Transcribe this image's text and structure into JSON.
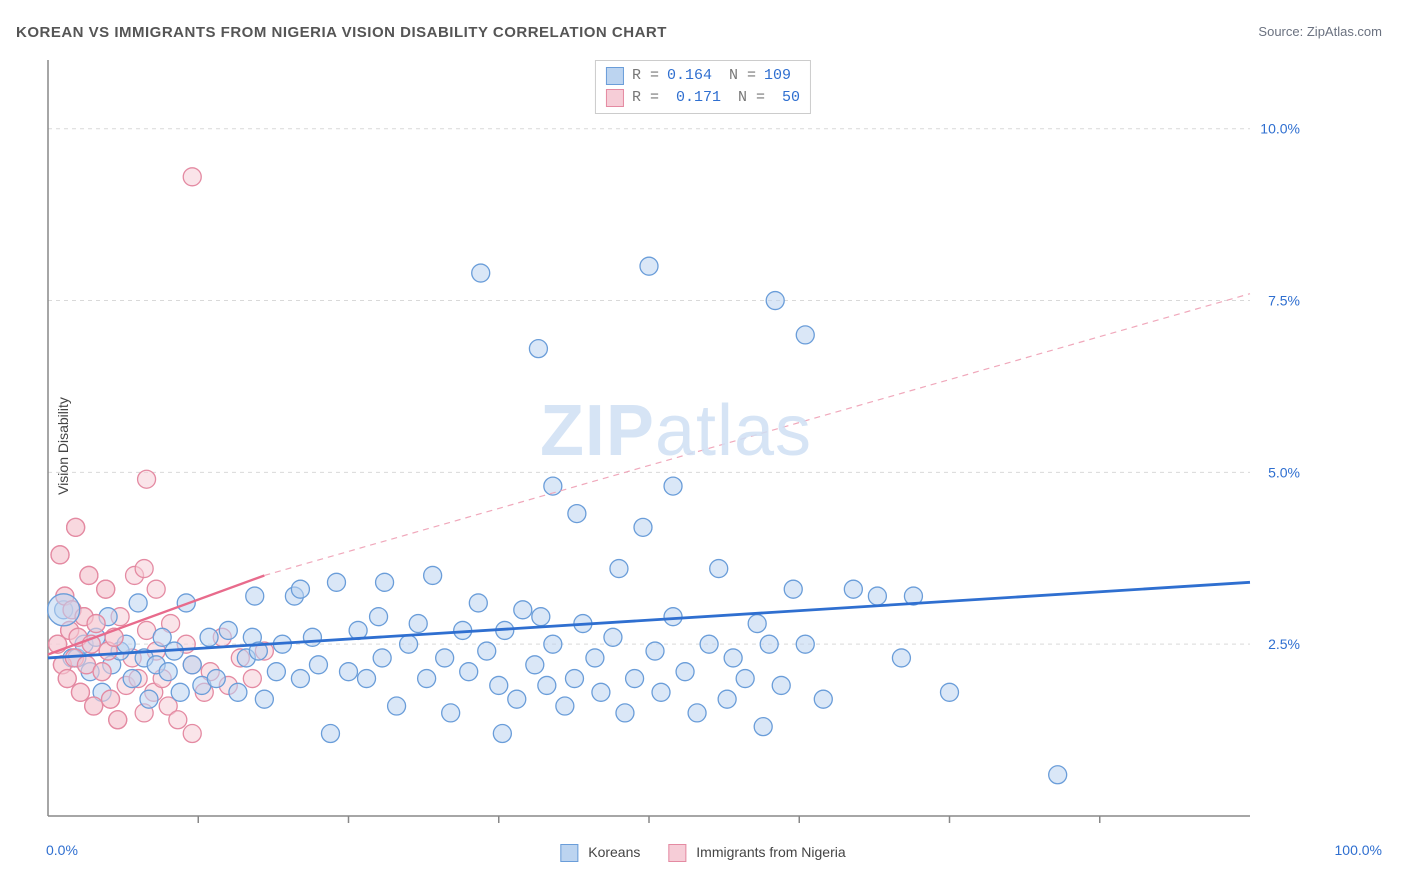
{
  "title": "KOREAN VS IMMIGRANTS FROM NIGERIA VISION DISABILITY CORRELATION CHART",
  "source_label": "Source:",
  "source_value": "ZipAtlas.com",
  "y_axis_label": "Vision Disability",
  "watermark_bold": "ZIP",
  "watermark_rest": "atlas",
  "chart": {
    "type": "scatter",
    "xlim": [
      0,
      100
    ],
    "ylim": [
      0,
      11
    ],
    "x_tick_label_min": "0.0%",
    "x_tick_label_max": "100.0%",
    "x_ticks_at": [
      12.5,
      25,
      37.5,
      50,
      62.5,
      75,
      87.5
    ],
    "y_ticks": [
      {
        "v": 2.5,
        "label": "2.5%"
      },
      {
        "v": 5.0,
        "label": "5.0%"
      },
      {
        "v": 7.5,
        "label": "7.5%"
      },
      {
        "v": 10.0,
        "label": "10.0%"
      }
    ],
    "y_tick_color": "#2f6fd0",
    "grid_color": "#d9d9d9",
    "axis_color": "#888888",
    "background_color": "#ffffff",
    "marker_radius": 9,
    "marker_stroke_width": 1.3,
    "series": [
      {
        "name": "Koreans",
        "fill": "#bcd4f0",
        "stroke": "#6a9dd9",
        "fill_opacity": 0.55,
        "trend": {
          "x1": 0,
          "y1": 2.3,
          "x2": 100,
          "y2": 3.4,
          "dash": "",
          "width": 2.8,
          "color": "#2f6fd0"
        },
        "stats": {
          "R": "0.164",
          "N": "109"
        },
        "points": [
          [
            1.3,
            3.0
          ],
          [
            2.0,
            2.3
          ],
          [
            2.4,
            2.3
          ],
          [
            3.0,
            2.5
          ],
          [
            3.5,
            2.1
          ],
          [
            4.0,
            2.6
          ],
          [
            4.5,
            1.8
          ],
          [
            5.0,
            2.9
          ],
          [
            5.3,
            2.2
          ],
          [
            6.0,
            2.4
          ],
          [
            6.5,
            2.5
          ],
          [
            7.0,
            2.0
          ],
          [
            7.5,
            3.1
          ],
          [
            8.0,
            2.3
          ],
          [
            8.4,
            1.7
          ],
          [
            9.0,
            2.2
          ],
          [
            9.5,
            2.6
          ],
          [
            10.0,
            2.1
          ],
          [
            10.5,
            2.4
          ],
          [
            11.0,
            1.8
          ],
          [
            11.5,
            3.1
          ],
          [
            12.0,
            2.2
          ],
          [
            12.8,
            1.9
          ],
          [
            13.4,
            2.6
          ],
          [
            14.0,
            2.0
          ],
          [
            15.0,
            2.7
          ],
          [
            15.8,
            1.8
          ],
          [
            16.5,
            2.3
          ],
          [
            17.0,
            2.6
          ],
          [
            17.2,
            3.2
          ],
          [
            17.5,
            2.4
          ],
          [
            18.0,
            1.7
          ],
          [
            19.0,
            2.1
          ],
          [
            19.5,
            2.5
          ],
          [
            20.5,
            3.2
          ],
          [
            21.0,
            2.0
          ],
          [
            21.0,
            3.3
          ],
          [
            22.0,
            2.6
          ],
          [
            22.5,
            2.2
          ],
          [
            23.5,
            1.2
          ],
          [
            24.0,
            3.4
          ],
          [
            25.0,
            2.1
          ],
          [
            25.8,
            2.7
          ],
          [
            26.5,
            2.0
          ],
          [
            27.5,
            2.9
          ],
          [
            27.8,
            2.3
          ],
          [
            28.0,
            3.4
          ],
          [
            29.0,
            1.6
          ],
          [
            30.0,
            2.5
          ],
          [
            30.8,
            2.8
          ],
          [
            31.5,
            2.0
          ],
          [
            32.0,
            3.5
          ],
          [
            33.0,
            2.3
          ],
          [
            33.5,
            1.5
          ],
          [
            34.5,
            2.7
          ],
          [
            35.0,
            2.1
          ],
          [
            35.8,
            3.1
          ],
          [
            36.0,
            7.9
          ],
          [
            36.5,
            2.4
          ],
          [
            37.5,
            1.9
          ],
          [
            37.8,
            1.2
          ],
          [
            38.0,
            2.7
          ],
          [
            39.0,
            1.7
          ],
          [
            39.5,
            3.0
          ],
          [
            40.5,
            2.2
          ],
          [
            40.8,
            6.8
          ],
          [
            41.0,
            2.9
          ],
          [
            41.5,
            1.9
          ],
          [
            42.0,
            4.8
          ],
          [
            42.0,
            2.5
          ],
          [
            43.0,
            1.6
          ],
          [
            43.8,
            2.0
          ],
          [
            44.0,
            4.4
          ],
          [
            44.5,
            2.8
          ],
          [
            45.5,
            2.3
          ],
          [
            46.0,
            1.8
          ],
          [
            47.0,
            2.6
          ],
          [
            47.5,
            3.6
          ],
          [
            48.0,
            1.5
          ],
          [
            48.8,
            2.0
          ],
          [
            49.5,
            4.2
          ],
          [
            50.0,
            8.0
          ],
          [
            50.5,
            2.4
          ],
          [
            51.0,
            1.8
          ],
          [
            52.0,
            2.9
          ],
          [
            52.0,
            4.8
          ],
          [
            53.0,
            2.1
          ],
          [
            54.0,
            1.5
          ],
          [
            55.0,
            2.5
          ],
          [
            55.8,
            3.6
          ],
          [
            56.5,
            1.7
          ],
          [
            57.0,
            2.3
          ],
          [
            58.0,
            2.0
          ],
          [
            59.0,
            2.8
          ],
          [
            59.5,
            1.3
          ],
          [
            60.0,
            2.5
          ],
          [
            60.5,
            7.5
          ],
          [
            61.0,
            1.9
          ],
          [
            62.0,
            3.3
          ],
          [
            63.0,
            7.0
          ],
          [
            63.0,
            2.5
          ],
          [
            64.5,
            1.7
          ],
          [
            67.0,
            3.3
          ],
          [
            69.0,
            3.2
          ],
          [
            71.0,
            2.3
          ],
          [
            72.0,
            3.2
          ],
          [
            75.0,
            1.8
          ],
          [
            84.0,
            0.6
          ]
        ]
      },
      {
        "name": "Immigrants from Nigeria",
        "fill": "#f6cdd7",
        "stroke": "#e48aa2",
        "fill_opacity": 0.55,
        "trend_solid": {
          "x1": 0,
          "y1": 2.35,
          "x2": 18,
          "y2": 3.5,
          "dash": "",
          "width": 2.4,
          "color": "#e86b8c"
        },
        "trend_dash": {
          "x1": 18,
          "y1": 3.5,
          "x2": 100,
          "y2": 7.6,
          "dash": "6 5",
          "width": 1.2,
          "color": "#f0a8bb"
        },
        "stats": {
          "R": "0.171",
          "N": "50"
        },
        "points": [
          [
            0.8,
            2.5
          ],
          [
            1.0,
            3.8
          ],
          [
            1.2,
            2.2
          ],
          [
            1.4,
            3.2
          ],
          [
            1.6,
            2.0
          ],
          [
            1.8,
            2.7
          ],
          [
            2.0,
            3.0
          ],
          [
            2.2,
            2.3
          ],
          [
            2.3,
            4.2
          ],
          [
            2.5,
            2.6
          ],
          [
            2.7,
            1.8
          ],
          [
            3.0,
            2.9
          ],
          [
            3.2,
            2.2
          ],
          [
            3.4,
            3.5
          ],
          [
            3.6,
            2.5
          ],
          [
            3.8,
            1.6
          ],
          [
            4.0,
            2.8
          ],
          [
            4.5,
            2.1
          ],
          [
            4.8,
            3.3
          ],
          [
            5.0,
            2.4
          ],
          [
            5.2,
            1.7
          ],
          [
            5.5,
            2.6
          ],
          [
            5.8,
            1.4
          ],
          [
            6.0,
            2.9
          ],
          [
            6.5,
            1.9
          ],
          [
            7.0,
            2.3
          ],
          [
            7.2,
            3.5
          ],
          [
            7.5,
            2.0
          ],
          [
            8.0,
            1.5
          ],
          [
            8.0,
            3.6
          ],
          [
            8.2,
            4.9
          ],
          [
            8.2,
            2.7
          ],
          [
            8.8,
            1.8
          ],
          [
            9.0,
            2.4
          ],
          [
            9.0,
            3.3
          ],
          [
            9.5,
            2.0
          ],
          [
            10.0,
            1.6
          ],
          [
            10.2,
            2.8
          ],
          [
            10.8,
            1.4
          ],
          [
            11.5,
            2.5
          ],
          [
            12.0,
            1.2
          ],
          [
            12.0,
            2.2
          ],
          [
            12.0,
            9.3
          ],
          [
            13.0,
            1.8
          ],
          [
            13.5,
            2.1
          ],
          [
            14.5,
            2.6
          ],
          [
            15.0,
            1.9
          ],
          [
            16.0,
            2.3
          ],
          [
            17.0,
            2.0
          ],
          [
            18.0,
            2.4
          ]
        ]
      }
    ]
  },
  "bottom_legend": [
    {
      "label": "Koreans",
      "fill": "#bcd4f0",
      "stroke": "#6a9dd9"
    },
    {
      "label": "Immigrants from Nigeria",
      "fill": "#f6cdd7",
      "stroke": "#e48aa2"
    }
  ]
}
